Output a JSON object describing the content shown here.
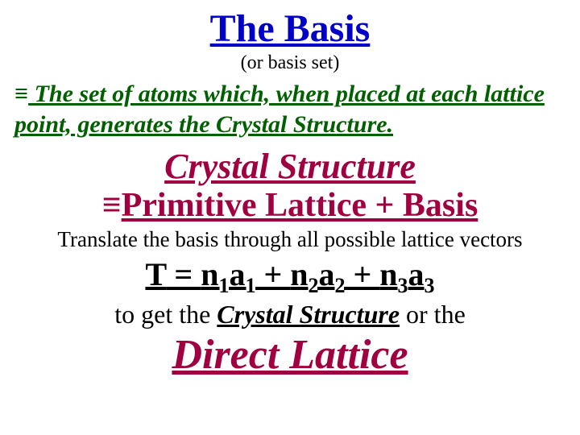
{
  "colors": {
    "title": "#0000c8",
    "subtitle": "#000000",
    "definition": "#006000",
    "crystal_heading": "#a00040",
    "crystal_equation": "#a00040",
    "translate": "#000000",
    "t_equation": "#000000",
    "bottom_line": "#000000",
    "direct_lattice": "#a00040"
  },
  "title": "The Basis",
  "subtitle": "(or basis set)",
  "equiv_symbol": "≡",
  "definition_text": " The set of atoms which, when placed at each lattice point, generates the Crystal Structure.",
  "crystal_heading": "Crystal Structure",
  "crystal_eq_prefix": "≡ ",
  "crystal_eq_main": "Primitive Lattice + Basis",
  "translate_text": "Translate the basis through all possible lattice vectors",
  "t_equation": {
    "T": "T",
    "eq": " = ",
    "n1": "n",
    "s1": "1",
    "a1": "a",
    "as1": "1",
    "plus1": " + ",
    "n2": "n",
    "s2": "2",
    "a2": "a",
    "as2": "2",
    "plus2": " + ",
    "n3": "n",
    "s3": "3",
    "a3": "a",
    "as3": "3"
  },
  "bottom_prefix": "to get the ",
  "bottom_cs": "Crystal Structure",
  "bottom_suffix": " or the",
  "direct_lattice": "Direct Lattice"
}
